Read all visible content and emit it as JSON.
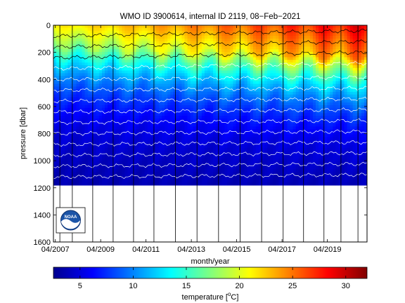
{
  "chart_data": {
    "type": "heatmap",
    "title": "WMO ID 3900614, internal ID 2119, 08−Feb−2021",
    "xlabel": "month/year",
    "ylabel": "pressure [dbar]",
    "x_ticks": [
      "04/2007",
      "04/2009",
      "04/2011",
      "04/2013",
      "04/2015",
      "04/2017",
      "04/2019"
    ],
    "y_ticks": [
      0,
      200,
      400,
      600,
      800,
      1000,
      1200,
      1400,
      1600
    ],
    "ylim": [
      1600,
      0
    ],
    "xlim": [
      "03/2007",
      "01/2021"
    ],
    "y_reversed": true,
    "colorbar": {
      "label": "temperature [°C]",
      "label_prefix": "temperature [",
      "label_unit_sup": "o",
      "label_unit": "C",
      "label_suffix": "]",
      "ticks": [
        5,
        10,
        15,
        20,
        25,
        30
      ],
      "range": [
        2.5,
        32
      ]
    },
    "profile_depth_max": 1180,
    "grid": false,
    "logo": "NOAA",
    "surface_temperature_range": [
      18,
      30
    ],
    "deep_temperature_range": [
      3,
      5
    ]
  }
}
